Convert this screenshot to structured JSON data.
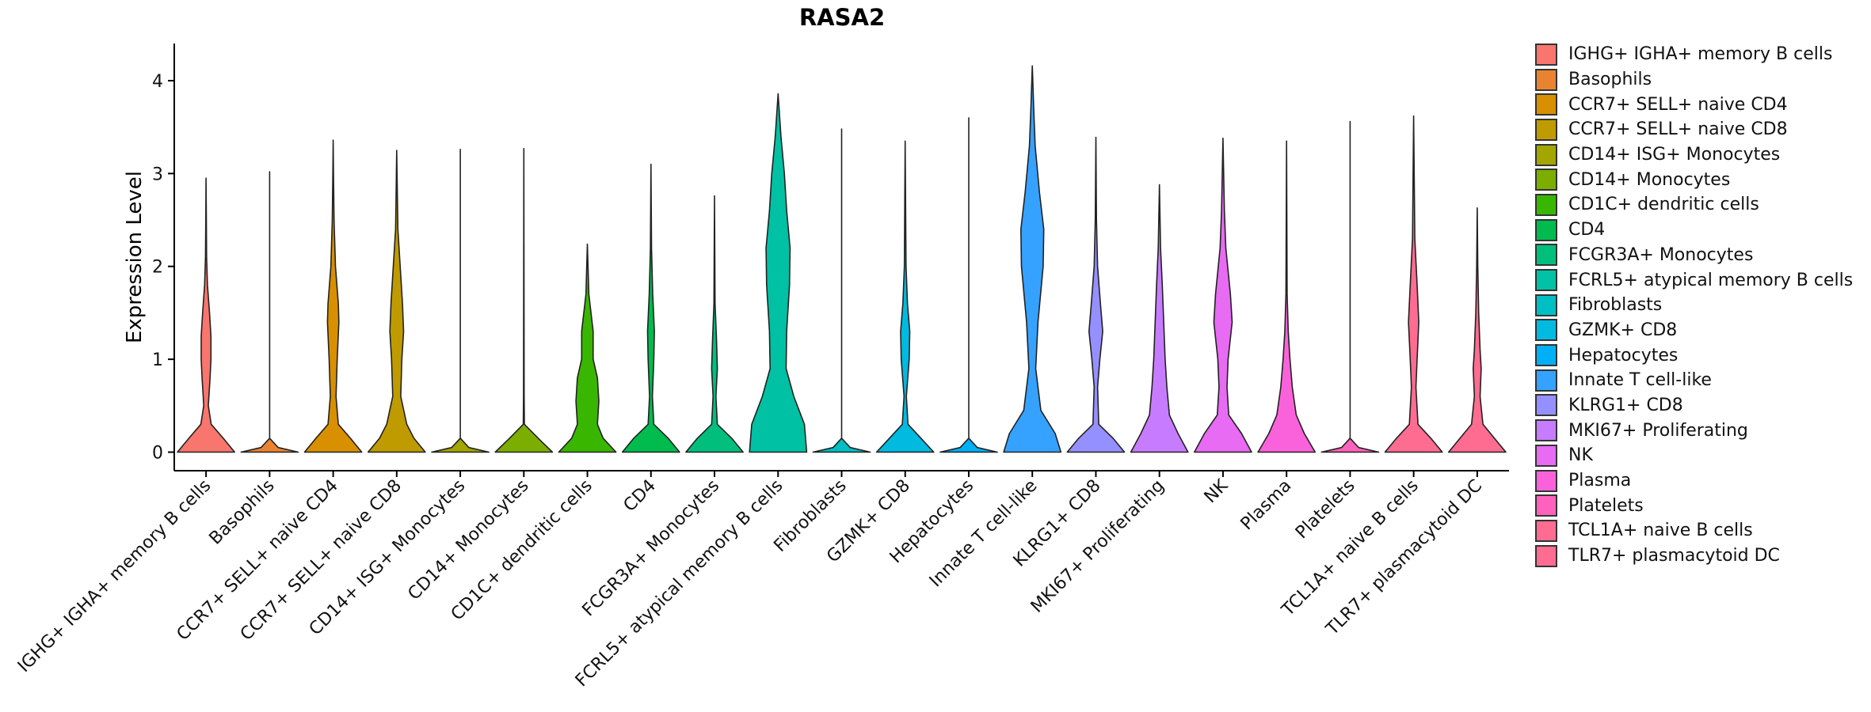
{
  "chart_data": {
    "type": "violin",
    "title": "RASA2",
    "xlabel": "",
    "ylabel": "Expression Level",
    "ylim": [
      -0.2,
      4.4
    ],
    "yticks": [
      0,
      1,
      2,
      3,
      4
    ],
    "legend_position": "right",
    "categories": [
      "IGHG+ IGHA+ memory B cells",
      "Basophils",
      "CCR7+ SELL+ naive CD4",
      "CCR7+ SELL+ naive CD8",
      "CD14+ ISG+ Monocytes",
      "CD14+ Monocytes",
      "CD1C+ dendritic cells",
      "CD4",
      "FCGR3A+ Monocytes",
      "FCRL5+ atypical memory B cells",
      "Fibroblasts",
      "GZMK+ CD8",
      "Hepatocytes",
      "Innate T cell-like",
      "KLRG1+ CD8",
      "MKI67+ Proliferating",
      "NK",
      "Plasma",
      "Platelets",
      "TCL1A+ naive B cells",
      "TLR7+ plasmacytoid DC"
    ],
    "legend_labels": [
      " IGHG+ IGHA+ memory B cells",
      "Basophils",
      "CCR7+ SELL+ naive CD4",
      "CCR7+ SELL+ naive CD8",
      "CD14+ ISG+ Monocytes",
      "CD14+ Monocytes",
      "CD1C+ dendritic cells",
      "CD4",
      "FCGR3A+ Monocytes",
      "FCRL5+ atypical memory B cells",
      "Fibroblasts",
      "GZMK+ CD8",
      "Hepatocytes",
      "Innate T cell-like",
      "KLRG1+ CD8",
      "MKI67+ Proliferating",
      "NK",
      "Plasma",
      "Platelets",
      "TCL1A+ naive B cells",
      "TLR7+ plasmacytoid DC"
    ],
    "colors": [
      "#F8766D",
      "#EA8331",
      "#D89000",
      "#C09B00",
      "#A3A500",
      "#7CAE00",
      "#39B600",
      "#00BB4E",
      "#00BF7D",
      "#00C1A3",
      "#00BFC4",
      "#00BAE0",
      "#00B0F6",
      "#35A2FF",
      "#9590FF",
      "#C77CFF",
      "#E76BF3",
      "#FA62DB",
      "#FF62BC",
      "#FF6C91",
      "#FF6C91"
    ],
    "max_values": [
      2.95,
      3.02,
      3.36,
      3.25,
      3.26,
      3.27,
      2.24,
      3.1,
      2.76,
      3.86,
      3.48,
      3.35,
      3.6,
      4.16,
      3.39,
      2.88,
      3.38,
      3.35,
      3.56,
      3.62,
      2.63
    ],
    "density_profiles": [
      [
        [
          0,
          1
        ],
        [
          0.15,
          0.6
        ],
        [
          0.3,
          0.18
        ],
        [
          0.5,
          0.08
        ],
        [
          0.8,
          0.14
        ],
        [
          1.0,
          0.17
        ],
        [
          1.25,
          0.17
        ],
        [
          1.5,
          0.12
        ],
        [
          1.8,
          0.05
        ],
        [
          2.1,
          0.02
        ],
        [
          2.5,
          0.01
        ],
        [
          2.95,
          0
        ]
      ],
      [
        [
          0,
          1
        ],
        [
          0.05,
          0.3
        ],
        [
          0.15,
          0
        ],
        [
          3.02,
          0
        ]
      ],
      [
        [
          0,
          1
        ],
        [
          0.15,
          0.6
        ],
        [
          0.3,
          0.18
        ],
        [
          0.6,
          0.1
        ],
        [
          1.0,
          0.14
        ],
        [
          1.4,
          0.2
        ],
        [
          1.6,
          0.18
        ],
        [
          2.0,
          0.08
        ],
        [
          2.5,
          0.03
        ],
        [
          3.0,
          0.01
        ],
        [
          3.36,
          0
        ]
      ],
      [
        [
          0,
          1
        ],
        [
          0.15,
          0.6
        ],
        [
          0.3,
          0.35
        ],
        [
          0.6,
          0.14
        ],
        [
          1.0,
          0.18
        ],
        [
          1.3,
          0.24
        ],
        [
          1.6,
          0.2
        ],
        [
          2.0,
          0.12
        ],
        [
          2.4,
          0.04
        ],
        [
          2.8,
          0.02
        ],
        [
          3.25,
          0
        ]
      ],
      [
        [
          0,
          1
        ],
        [
          0.05,
          0.3
        ],
        [
          0.15,
          0
        ],
        [
          3.26,
          0
        ]
      ],
      [
        [
          0,
          1
        ],
        [
          0.15,
          0.5
        ],
        [
          0.3,
          0.02
        ],
        [
          0.6,
          0.01
        ],
        [
          3.27,
          0
        ]
      ],
      [
        [
          0,
          1
        ],
        [
          0.15,
          0.55
        ],
        [
          0.3,
          0.35
        ],
        [
          0.55,
          0.4
        ],
        [
          0.8,
          0.35
        ],
        [
          1.0,
          0.2
        ],
        [
          1.3,
          0.2
        ],
        [
          1.7,
          0.05
        ],
        [
          2.24,
          0
        ]
      ],
      [
        [
          0,
          1
        ],
        [
          0.15,
          0.6
        ],
        [
          0.3,
          0.1
        ],
        [
          0.6,
          0.05
        ],
        [
          1.0,
          0.1
        ],
        [
          1.3,
          0.12
        ],
        [
          1.7,
          0.06
        ],
        [
          2.2,
          0.02
        ],
        [
          3.1,
          0
        ]
      ],
      [
        [
          0,
          1
        ],
        [
          0.15,
          0.6
        ],
        [
          0.3,
          0.1
        ],
        [
          0.6,
          0.05
        ],
        [
          0.9,
          0.1
        ],
        [
          1.2,
          0.07
        ],
        [
          1.6,
          0.02
        ],
        [
          2.76,
          0
        ]
      ],
      [
        [
          0,
          1
        ],
        [
          0.3,
          0.92
        ],
        [
          0.6,
          0.55
        ],
        [
          0.9,
          0.28
        ],
        [
          1.3,
          0.3
        ],
        [
          1.8,
          0.4
        ],
        [
          2.2,
          0.42
        ],
        [
          2.6,
          0.3
        ],
        [
          3.0,
          0.22
        ],
        [
          3.4,
          0.1
        ],
        [
          3.86,
          0
        ]
      ],
      [
        [
          0,
          1
        ],
        [
          0.05,
          0.3
        ],
        [
          0.15,
          0
        ],
        [
          3.48,
          0
        ]
      ],
      [
        [
          0,
          1
        ],
        [
          0.15,
          0.55
        ],
        [
          0.3,
          0.1
        ],
        [
          0.6,
          0.04
        ],
        [
          1.0,
          0.14
        ],
        [
          1.3,
          0.16
        ],
        [
          1.6,
          0.08
        ],
        [
          2.0,
          0.03
        ],
        [
          3.35,
          0
        ]
      ],
      [
        [
          0,
          1
        ],
        [
          0.05,
          0.3
        ],
        [
          0.15,
          0
        ],
        [
          3.6,
          0
        ]
      ],
      [
        [
          0,
          1
        ],
        [
          0.2,
          0.8
        ],
        [
          0.45,
          0.3
        ],
        [
          0.9,
          0.12
        ],
        [
          1.4,
          0.2
        ],
        [
          2.0,
          0.38
        ],
        [
          2.4,
          0.4
        ],
        [
          2.8,
          0.25
        ],
        [
          3.3,
          0.1
        ],
        [
          3.7,
          0.05
        ],
        [
          4.16,
          0
        ]
      ],
      [
        [
          0,
          1
        ],
        [
          0.15,
          0.6
        ],
        [
          0.3,
          0.1
        ],
        [
          0.7,
          0.06
        ],
        [
          1.0,
          0.14
        ],
        [
          1.3,
          0.24
        ],
        [
          1.6,
          0.16
        ],
        [
          2.0,
          0.06
        ],
        [
          2.5,
          0.02
        ],
        [
          3.39,
          0
        ]
      ],
      [
        [
          0,
          1
        ],
        [
          0.2,
          0.65
        ],
        [
          0.4,
          0.35
        ],
        [
          0.7,
          0.26
        ],
        [
          1.0,
          0.2
        ],
        [
          1.4,
          0.15
        ],
        [
          1.8,
          0.1
        ],
        [
          2.2,
          0.04
        ],
        [
          2.88,
          0
        ]
      ],
      [
        [
          0,
          1
        ],
        [
          0.2,
          0.65
        ],
        [
          0.4,
          0.2
        ],
        [
          0.7,
          0.14
        ],
        [
          1.0,
          0.18
        ],
        [
          1.4,
          0.32
        ],
        [
          1.7,
          0.26
        ],
        [
          2.2,
          0.1
        ],
        [
          2.6,
          0.05
        ],
        [
          3.38,
          0
        ]
      ],
      [
        [
          0,
          1
        ],
        [
          0.2,
          0.62
        ],
        [
          0.4,
          0.34
        ],
        [
          0.7,
          0.2
        ],
        [
          1.0,
          0.12
        ],
        [
          1.3,
          0.06
        ],
        [
          1.7,
          0.02
        ],
        [
          3.35,
          0
        ]
      ],
      [
        [
          0,
          1
        ],
        [
          0.05,
          0.3
        ],
        [
          0.15,
          0
        ],
        [
          3.56,
          0
        ]
      ],
      [
        [
          0,
          1
        ],
        [
          0.15,
          0.6
        ],
        [
          0.3,
          0.15
        ],
        [
          0.7,
          0.08
        ],
        [
          1.0,
          0.12
        ],
        [
          1.4,
          0.18
        ],
        [
          1.8,
          0.12
        ],
        [
          2.3,
          0.04
        ],
        [
          3.62,
          0
        ]
      ],
      [
        [
          0,
          1
        ],
        [
          0.15,
          0.6
        ],
        [
          0.3,
          0.2
        ],
        [
          0.6,
          0.1
        ],
        [
          0.9,
          0.14
        ],
        [
          1.1,
          0.1
        ],
        [
          1.5,
          0.05
        ],
        [
          2.0,
          0.02
        ],
        [
          2.63,
          0
        ]
      ]
    ],
    "max_width_data_fraction": [
      0.9,
      0.9,
      0.9,
      0.9,
      0.9,
      0.9,
      0.9,
      0.9,
      0.9,
      0.9,
      0.9,
      0.9,
      0.9,
      0.9,
      0.9,
      0.9,
      0.9,
      0.9,
      0.9,
      0.9,
      0.9
    ]
  }
}
